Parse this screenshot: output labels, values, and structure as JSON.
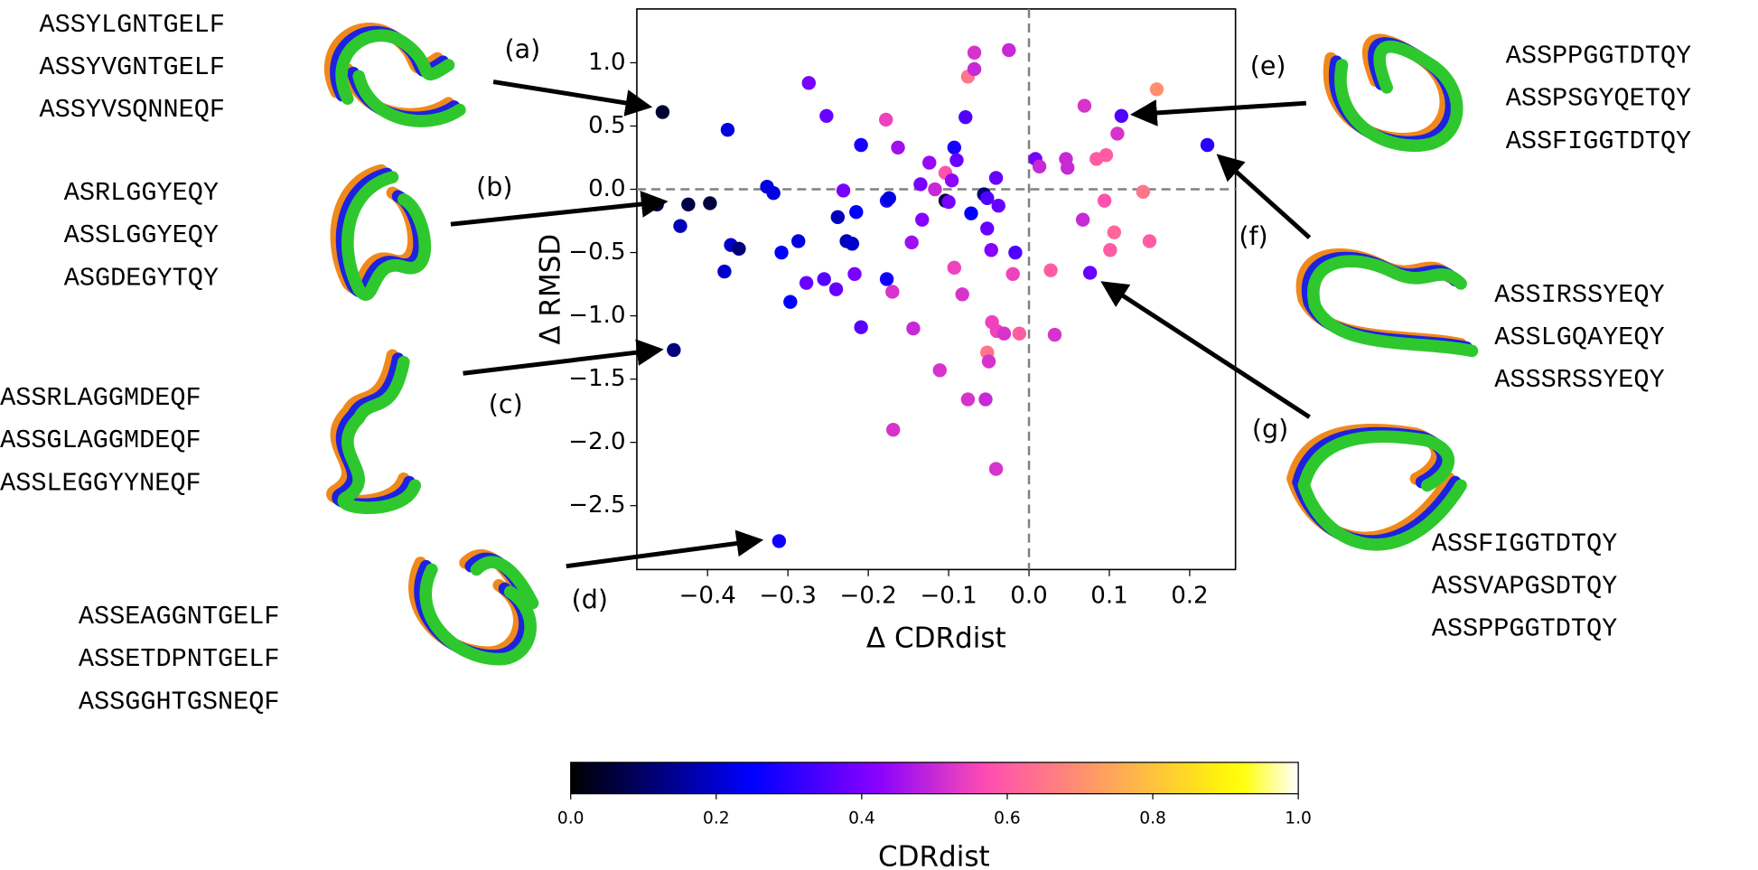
{
  "chart_data": {
    "type": "scatter",
    "x_label": "Δ CDRdist",
    "y_label": "Δ RMSD",
    "x": [
      -0.456,
      -0.375,
      -0.463,
      -0.424,
      -0.397,
      -0.434,
      -0.371,
      -0.361,
      -0.379,
      -0.442,
      -0.326,
      -0.318,
      -0.287,
      -0.308,
      -0.297,
      -0.311,
      -0.274,
      -0.252,
      -0.277,
      -0.255,
      -0.24,
      -0.231,
      -0.238,
      -0.227,
      -0.22,
      -0.215,
      -0.209,
      -0.209,
      -0.177,
      -0.174,
      -0.177,
      -0.217,
      -0.178,
      -0.163,
      -0.17,
      -0.169,
      -0.144,
      -0.146,
      -0.135,
      -0.133,
      -0.124,
      -0.117,
      -0.111,
      -0.104,
      -0.104,
      -0.1,
      -0.096,
      -0.093,
      -0.093,
      -0.09,
      -0.079,
      -0.076,
      -0.076,
      -0.068,
      -0.068,
      -0.083,
      -0.072,
      -0.056,
      -0.054,
      -0.052,
      -0.052,
      -0.052,
      -0.05,
      -0.046,
      -0.041,
      -0.04,
      -0.031,
      -0.047,
      -0.041,
      -0.038,
      -0.025,
      -0.02,
      -0.017,
      -0.012,
      0.008,
      0.013,
      0.027,
      0.032,
      0.046,
      0.048,
      0.067,
      0.069,
      0.076,
      0.084,
      0.094,
      0.096,
      0.101,
      0.106,
      0.11,
      0.115,
      0.142,
      0.15,
      0.159,
      0.222
    ],
    "y": [
      0.61,
      0.47,
      -0.12,
      -0.12,
      -0.11,
      -0.29,
      -0.44,
      -0.47,
      -0.65,
      -1.27,
      0.02,
      -0.03,
      -0.41,
      -0.5,
      -0.89,
      -2.78,
      0.84,
      0.58,
      -0.74,
      -0.71,
      -0.79,
      -0.01,
      -0.22,
      -0.41,
      -0.43,
      -0.18,
      0.35,
      -1.09,
      -0.09,
      -0.07,
      -0.71,
      -0.67,
      0.55,
      0.33,
      -0.81,
      -1.9,
      -1.1,
      -0.42,
      0.04,
      -0.24,
      0.21,
      0.0,
      -1.43,
      -0.09,
      0.13,
      -0.1,
      0.07,
      -0.62,
      0.33,
      0.23,
      0.57,
      -1.66,
      0.89,
      1.08,
      0.95,
      -0.83,
      -0.19,
      -0.04,
      -1.66,
      -0.07,
      -0.31,
      -1.29,
      -1.36,
      -1.05,
      -2.21,
      -1.12,
      -1.14,
      -0.48,
      0.09,
      -0.13,
      1.1,
      -0.67,
      -0.5,
      -1.14,
      0.24,
      0.18,
      -0.64,
      -1.15,
      0.24,
      0.17,
      -0.24,
      0.66,
      -0.66,
      0.24,
      -0.09,
      0.27,
      -0.48,
      -0.34,
      0.44,
      0.58,
      -0.02,
      -0.41,
      0.79,
      0.35
    ],
    "color_values": [
      0.05,
      0.22,
      0.08,
      0.07,
      0.06,
      0.18,
      0.2,
      0.12,
      0.2,
      0.12,
      0.22,
      0.22,
      0.22,
      0.25,
      0.25,
      0.27,
      0.4,
      0.38,
      0.38,
      0.36,
      0.38,
      0.4,
      0.18,
      0.18,
      0.2,
      0.25,
      0.28,
      0.36,
      0.28,
      0.22,
      0.27,
      0.4,
      0.55,
      0.45,
      0.52,
      0.52,
      0.5,
      0.45,
      0.4,
      0.42,
      0.44,
      0.5,
      0.52,
      0.05,
      0.58,
      0.4,
      0.43,
      0.55,
      0.28,
      0.38,
      0.35,
      0.52,
      0.65,
      0.52,
      0.5,
      0.52,
      0.25,
      0.12,
      0.5,
      0.35,
      0.38,
      0.65,
      0.52,
      0.55,
      0.52,
      0.55,
      0.52,
      0.42,
      0.38,
      0.38,
      0.5,
      0.55,
      0.35,
      0.6,
      0.4,
      0.5,
      0.6,
      0.52,
      0.5,
      0.5,
      0.5,
      0.52,
      0.38,
      0.6,
      0.58,
      0.6,
      0.6,
      0.62,
      0.52,
      0.35,
      0.65,
      0.6,
      0.7,
      0.3
    ],
    "xlim": [
      -0.488,
      0.257
    ],
    "ylim": [
      -3.005,
      1.425
    ],
    "xticks": [
      {
        "value": -0.4,
        "label": "−0.4"
      },
      {
        "value": -0.3,
        "label": "−0.3"
      },
      {
        "value": -0.2,
        "label": "−0.2"
      },
      {
        "value": -0.1,
        "label": "−0.1"
      },
      {
        "value": 0,
        "label": "0.0"
      },
      0.1,
      0.2
    ],
    "yticks": [
      {
        "value": -2.5,
        "label": "−2.5"
      },
      {
        "value": -2,
        "label": "−2.0"
      },
      {
        "value": -1.5,
        "label": "−1.5"
      },
      {
        "value": -1,
        "label": "−1.0"
      },
      {
        "value": -0.5,
        "label": "−0.5"
      },
      {
        "value": 0,
        "label": "0.0"
      },
      0.5,
      {
        "value": 1,
        "label": "1.0"
      }
    ],
    "reference_lines": {
      "x": 0,
      "y": 0
    },
    "colorbar": {
      "label": "CDRdist",
      "colormap": "gnuplot2",
      "lim": [
        0,
        1
      ],
      "ticks": [
        {
          "value": 0,
          "label": "0.0"
        },
        0.2,
        0.4,
        0.6,
        0.8,
        {
          "value": 1,
          "label": "1.0"
        }
      ]
    },
    "sequence_colors": [
      "#1f78c8",
      "#25ad45",
      "#f6bc00"
    ],
    "annotations": [
      {
        "label": "(a)",
        "sequences": [
          "ASSYLGNTGELF",
          "ASSYVGNTGELF",
          "ASSYVSQNNEQF"
        ]
      },
      {
        "label": "(b)",
        "sequences": [
          "ASRLGGYEQY",
          "ASSLGGYEQY",
          "ASGDEGYTQY"
        ]
      },
      {
        "label": "(c)",
        "sequences": [
          "ASSRLAGGMDEQF",
          "ASSGLAGGMDEQF",
          "ASSLEGGYYNEQF"
        ]
      },
      {
        "label": "(d)",
        "sequences": [
          "ASSEAGGNTGELF",
          "ASSETDPNTGELF",
          "ASSGGHTGSNEQF"
        ]
      },
      {
        "label": "(e)",
        "sequences": [
          "ASSPPGGTDTQY",
          "ASSPSGYQETQY",
          "ASSFIGGTDTQY"
        ]
      },
      {
        "label": "(f)",
        "sequences": [
          "ASSIRSSYEQY",
          "ASSLGQAYEQY",
          "ASSSRSSYEQY"
        ]
      },
      {
        "label": "(g)",
        "sequences": [
          "ASSFIGGTDTQY",
          "ASSVAPGSDTQY",
          "ASSPPGGTDTQY"
        ]
      }
    ]
  }
}
